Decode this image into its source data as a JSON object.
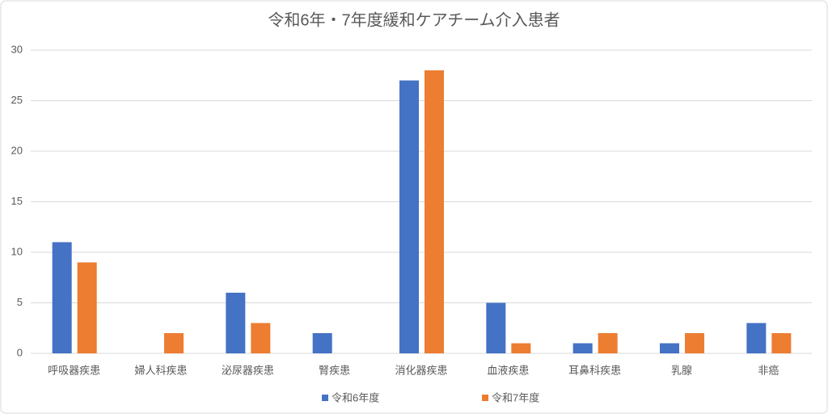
{
  "chart_data": {
    "type": "bar",
    "title": "令和6年・7年度緩和ケアチーム介入患者",
    "categories": [
      "呼吸器疾患",
      "婦人科疾患",
      "泌尿器疾患",
      "腎疾患",
      "消化器疾患",
      "血液疾患",
      "耳鼻科疾患",
      "乳腺",
      "非癌"
    ],
    "series": [
      {
        "name": "令和6年度",
        "color": "#4472c4",
        "values": [
          11,
          0,
          6,
          2,
          27,
          5,
          1,
          1,
          3
        ]
      },
      {
        "name": "令和7年度",
        "color": "#ed7d31",
        "values": [
          9,
          2,
          3,
          0,
          28,
          1,
          2,
          2,
          2
        ]
      }
    ],
    "ylim": [
      0,
      30
    ],
    "yticks": [
      0,
      5,
      10,
      15,
      20,
      25,
      30
    ],
    "grid": true,
    "legend": "bottom"
  }
}
